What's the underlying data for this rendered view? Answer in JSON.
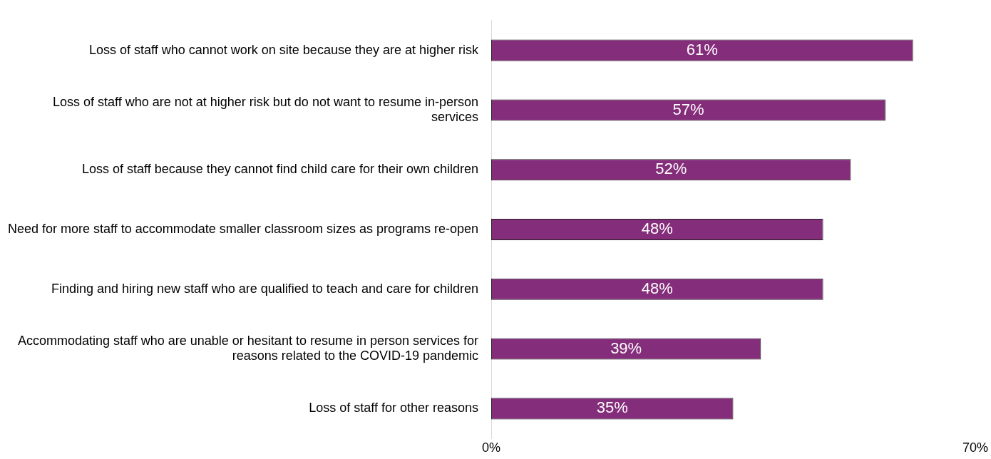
{
  "chart_data": {
    "type": "bar",
    "orientation": "horizontal",
    "categories": [
      "Loss of staff who cannot work on site because they are at higher risk",
      "Loss of staff who are not at higher risk but do not want to resume in-person services",
      "Loss of staff because they cannot find child care for their own children",
      "Need for more staff to accommodate smaller classroom sizes as programs re-open",
      "Finding and hiring new staff who are qualified to teach and care for children",
      "Accommodating staff who are unable or hesitant to resume in person services for reasons related to the COVID-19 pandemic",
      "Loss of staff for other reasons"
    ],
    "values": [
      61,
      57,
      52,
      48,
      48,
      39,
      35
    ],
    "value_labels": [
      "61%",
      "57%",
      "52%",
      "48%",
      "48%",
      "39%",
      "35%"
    ],
    "color": "#842d7a",
    "xlim": [
      0,
      70
    ],
    "xticks": [
      {
        "value": 0,
        "label": "0%"
      },
      {
        "value": 70,
        "label": "70%"
      }
    ],
    "grid": false,
    "legend": false
  }
}
